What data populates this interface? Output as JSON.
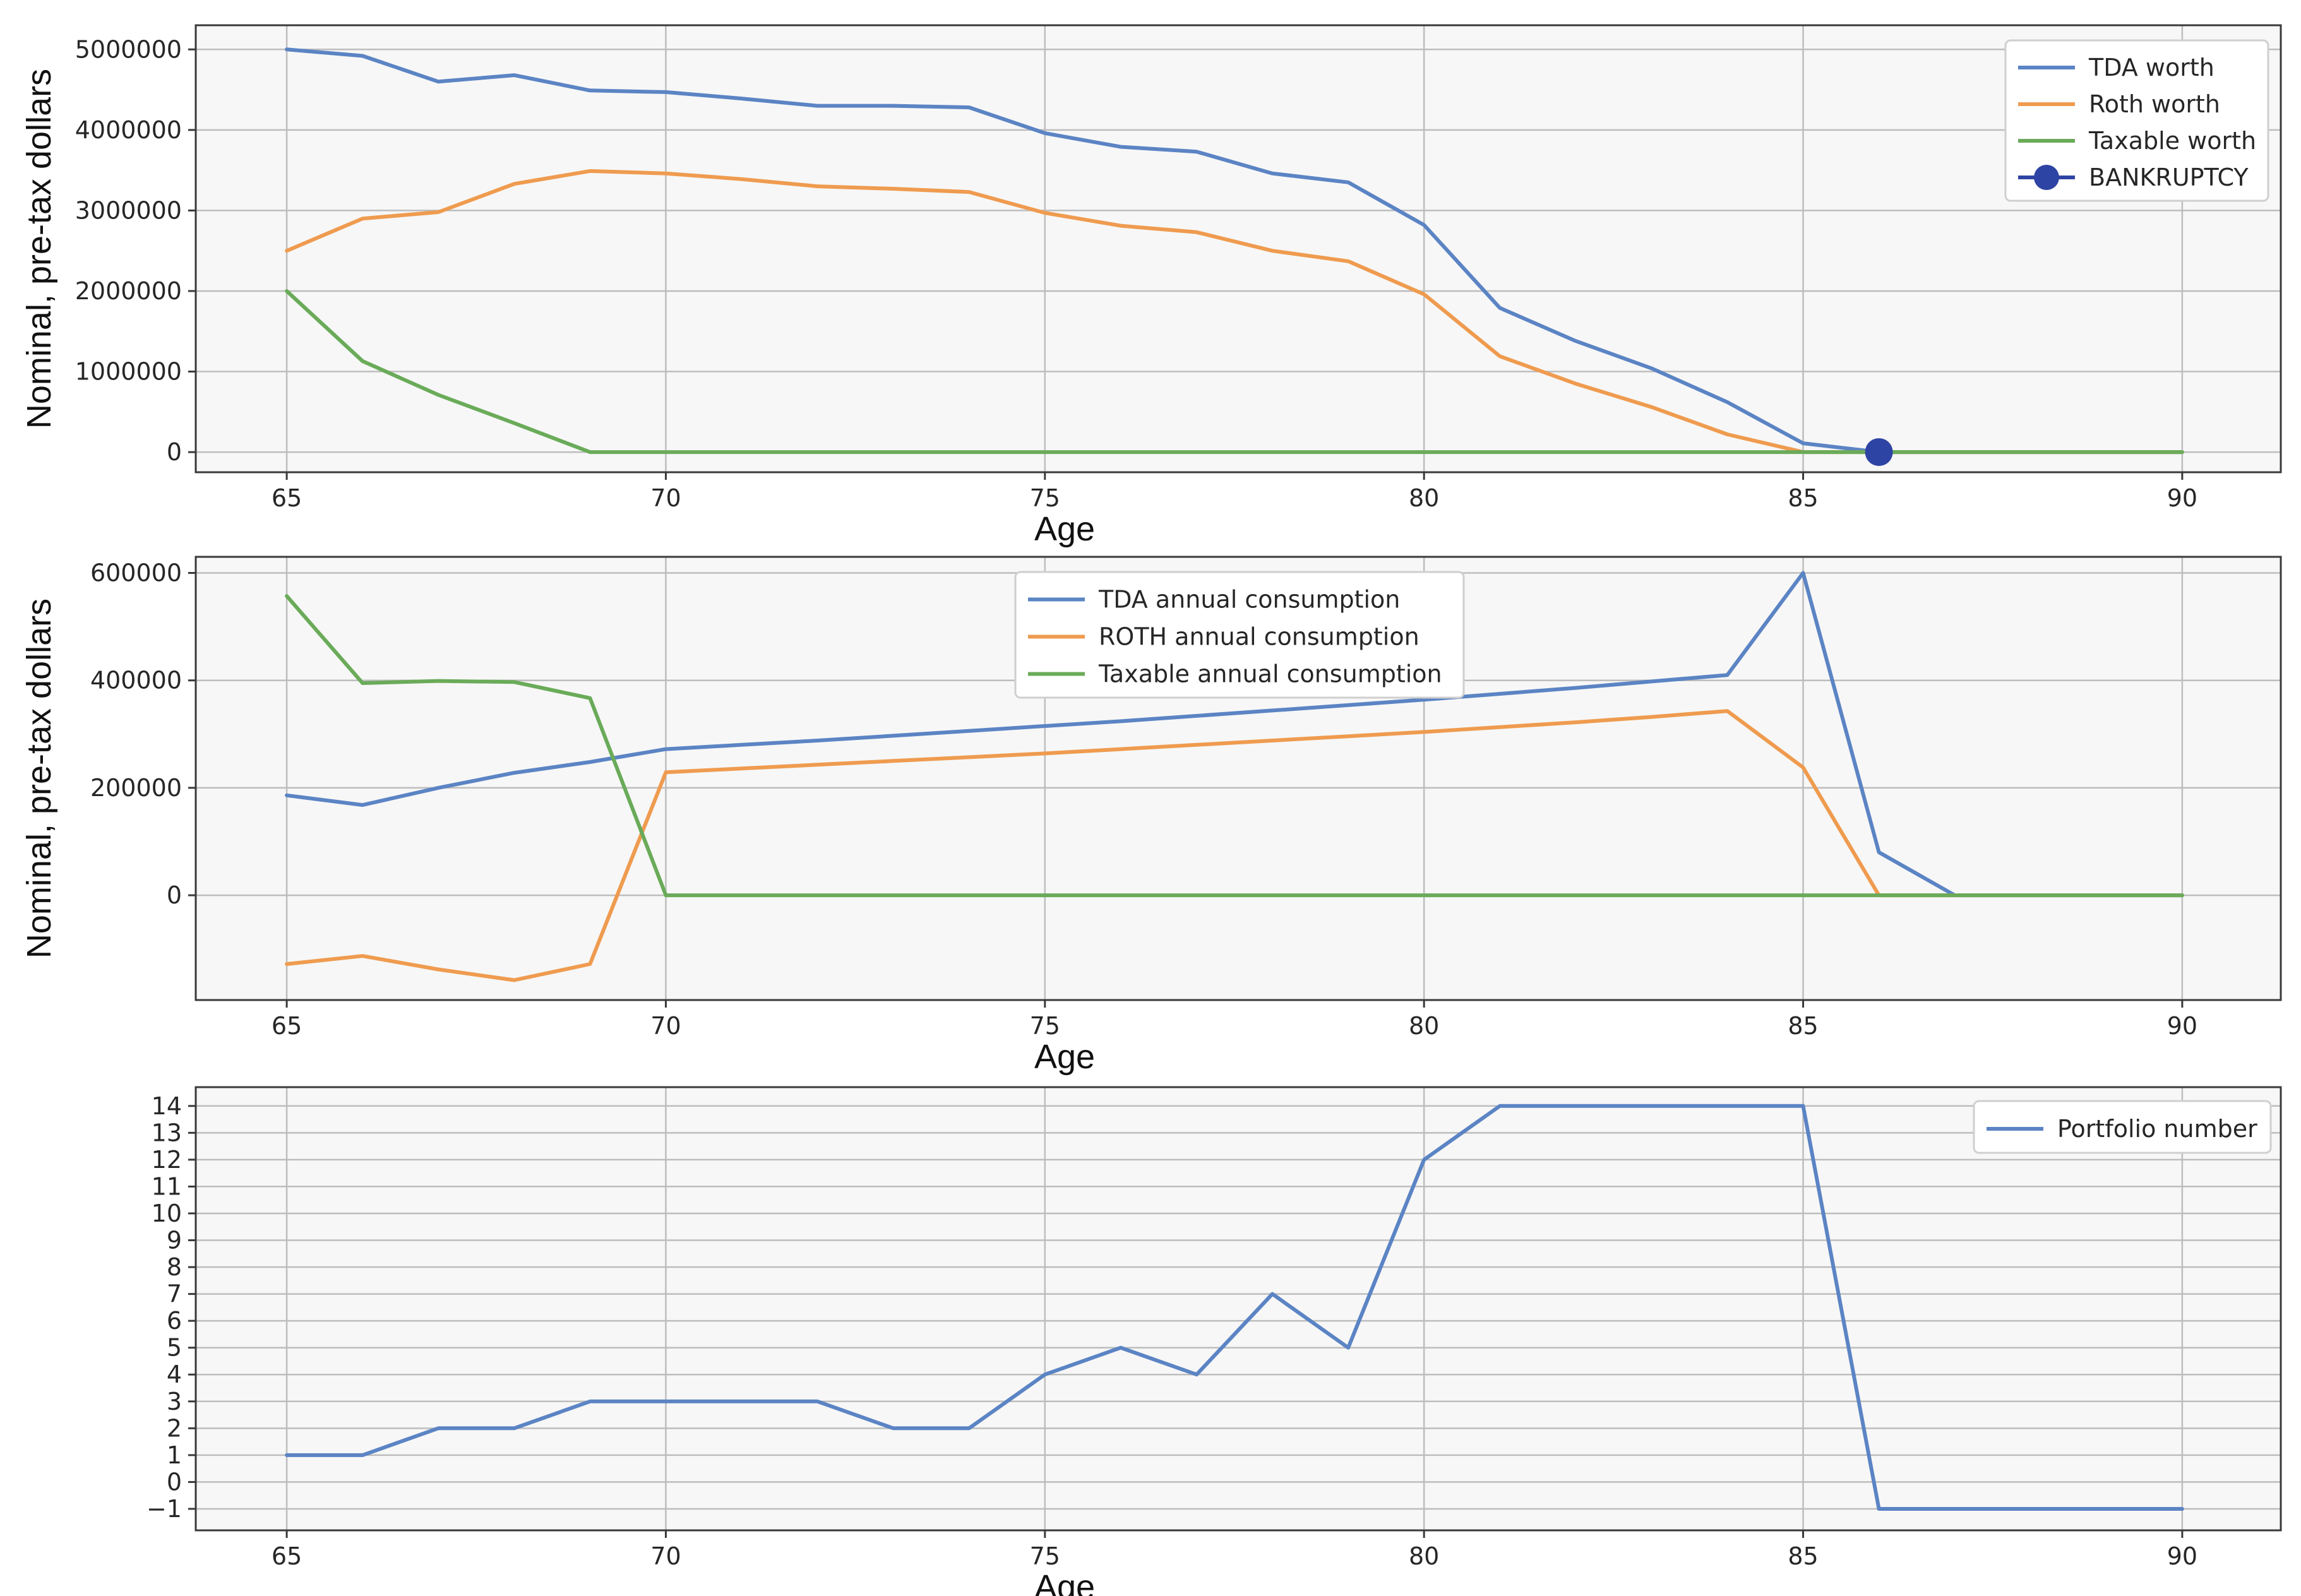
{
  "chart_data": [
    {
      "type": "line",
      "xlabel": "Age",
      "ylabel": "Nominal, pre-tax dollars",
      "xlim": [
        63.8,
        91.3
      ],
      "ylim": [
        -250000,
        5300000
      ],
      "x_ticks": [
        65,
        70,
        75,
        80,
        85,
        90
      ],
      "y_ticks": [
        0,
        1000000,
        2000000,
        3000000,
        4000000,
        5000000
      ],
      "grid": true,
      "legend_position": "top-right",
      "x": [
        65,
        66,
        67,
        68,
        69,
        70,
        71,
        72,
        73,
        74,
        75,
        76,
        77,
        78,
        79,
        80,
        81,
        82,
        83,
        84,
        85,
        86,
        87,
        88,
        89,
        90
      ],
      "series": [
        {
          "name": "TDA worth",
          "color": "#5b84c4",
          "values": [
            5000000,
            4920000,
            4600000,
            4680000,
            4490000,
            4470000,
            4390000,
            4300000,
            4300000,
            4280000,
            3960000,
            3790000,
            3730000,
            3460000,
            3350000,
            2820000,
            1790000,
            1380000,
            1040000,
            620000,
            110000,
            0,
            0,
            0,
            0,
            0
          ]
        },
        {
          "name": "Roth worth",
          "color": "#ef9b4f",
          "values": [
            2500000,
            2900000,
            2980000,
            3330000,
            3490000,
            3460000,
            3390000,
            3300000,
            3270000,
            3230000,
            2970000,
            2810000,
            2730000,
            2500000,
            2370000,
            1960000,
            1190000,
            850000,
            560000,
            220000,
            0,
            0,
            0,
            0,
            0,
            0
          ]
        },
        {
          "name": "Taxable worth",
          "color": "#6aab59",
          "values": [
            2000000,
            1130000,
            710000,
            360000,
            0,
            0,
            0,
            0,
            0,
            0,
            0,
            0,
            0,
            0,
            0,
            0,
            0,
            0,
            0,
            0,
            0,
            0,
            0,
            0,
            0,
            0
          ]
        }
      ],
      "markers": [
        {
          "name": "BANKRUPTCY",
          "color": "#2e44a4",
          "x": 86,
          "y": 0
        }
      ]
    },
    {
      "type": "line",
      "xlabel": "Age",
      "ylabel": "Nominal, pre-tax dollars",
      "xlim": [
        63.8,
        91.3
      ],
      "ylim": [
        -195000,
        630000
      ],
      "x_ticks": [
        65,
        70,
        75,
        80,
        85,
        90
      ],
      "y_ticks": [
        0,
        200000,
        400000,
        600000
      ],
      "grid": true,
      "legend_position": "top-center",
      "x": [
        65,
        66,
        67,
        68,
        69,
        70,
        71,
        72,
        73,
        74,
        75,
        76,
        77,
        78,
        79,
        80,
        81,
        82,
        83,
        84,
        85,
        86,
        87,
        88,
        89,
        90
      ],
      "series": [
        {
          "name": "TDA annual consumption",
          "color": "#5b84c4",
          "values": [
            186000,
            168000,
            200000,
            228000,
            248000,
            272000,
            280000,
            288000,
            297000,
            306000,
            315000,
            324000,
            334000,
            344000,
            354000,
            364000,
            375000,
            386000,
            398000,
            410000,
            600000,
            80000,
            0,
            0,
            0,
            0
          ]
        },
        {
          "name": "ROTH annual consumption",
          "color": "#ef9b4f",
          "values": [
            -128000,
            -113000,
            -138000,
            -158000,
            -128000,
            229000,
            236000,
            243000,
            250000,
            257000,
            264000,
            272000,
            280000,
            288000,
            296000,
            304000,
            313000,
            322000,
            332000,
            343000,
            238000,
            0,
            0,
            0,
            0,
            0
          ]
        },
        {
          "name": "Taxable annual consumption",
          "color": "#6aab59",
          "values": [
            557000,
            395000,
            399000,
            397000,
            367000,
            0,
            0,
            0,
            0,
            0,
            0,
            0,
            0,
            0,
            0,
            0,
            0,
            0,
            0,
            0,
            0,
            0,
            0,
            0,
            0,
            0
          ]
        }
      ]
    },
    {
      "type": "line",
      "xlabel": "Age",
      "ylabel": "",
      "xlim": [
        63.8,
        91.3
      ],
      "ylim": [
        -1.8,
        14.7
      ],
      "x_ticks": [
        65,
        70,
        75,
        80,
        85,
        90
      ],
      "y_ticks": [
        -1,
        0,
        1,
        2,
        3,
        4,
        5,
        6,
        7,
        8,
        9,
        10,
        11,
        12,
        13,
        14
      ],
      "grid": true,
      "legend_position": "top-right",
      "x": [
        65,
        66,
        67,
        68,
        69,
        70,
        71,
        72,
        73,
        74,
        75,
        76,
        77,
        78,
        79,
        80,
        81,
        82,
        83,
        84,
        85,
        86,
        87,
        88,
        89,
        90
      ],
      "series": [
        {
          "name": "Portfolio number",
          "color": "#5b84c4",
          "values": [
            1,
            1,
            2,
            2,
            3,
            3,
            3,
            3,
            2,
            2,
            4,
            5,
            4,
            7,
            5,
            12,
            14,
            14,
            14,
            14,
            14,
            -1,
            -1,
            -1,
            -1,
            -1
          ]
        }
      ]
    }
  ]
}
